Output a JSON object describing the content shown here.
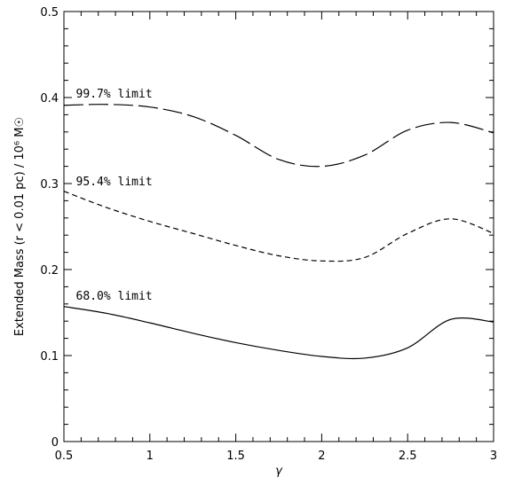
{
  "chart_data": {
    "type": "line",
    "xlabel": "γ",
    "ylabel": "Extended Mass (r < 0.01 pc) / 10⁶ M☉",
    "xlim": [
      0.5,
      3.0
    ],
    "ylim": [
      0,
      0.5
    ],
    "x_ticks": [
      0.5,
      1,
      1.5,
      2,
      2.5,
      3
    ],
    "x_tick_labels": [
      "0.5",
      "1",
      "1.5",
      "2",
      "2.5",
      "3"
    ],
    "y_ticks": [
      0,
      0.1,
      0.2,
      0.3,
      0.4,
      0.5
    ],
    "y_tick_labels": [
      "0",
      "0.1",
      "0.2",
      "0.3",
      "0.4",
      "0.5"
    ],
    "grid": false,
    "series": [
      {
        "name": "99.7% limit",
        "line_style": "long-dash",
        "x": [
          0.5,
          0.75,
          1.0,
          1.25,
          1.5,
          1.75,
          2.0,
          2.25,
          2.5,
          2.75,
          3.0
        ],
        "y": [
          0.391,
          0.392,
          0.389,
          0.378,
          0.356,
          0.328,
          0.32,
          0.333,
          0.362,
          0.371,
          0.359
        ]
      },
      {
        "name": "95.4% limit",
        "line_style": "short-dash",
        "x": [
          0.5,
          0.75,
          1.0,
          1.25,
          1.5,
          1.75,
          2.0,
          2.25,
          2.5,
          2.75,
          3.0
        ],
        "y": [
          0.291,
          0.272,
          0.256,
          0.242,
          0.228,
          0.216,
          0.21,
          0.214,
          0.242,
          0.259,
          0.242
        ]
      },
      {
        "name": "68.0% limit",
        "line_style": "solid",
        "x": [
          0.5,
          0.75,
          1.0,
          1.25,
          1.5,
          1.75,
          2.0,
          2.25,
          2.5,
          2.75,
          3.0
        ],
        "y": [
          0.157,
          0.149,
          0.138,
          0.126,
          0.115,
          0.106,
          0.099,
          0.097,
          0.109,
          0.142,
          0.139
        ]
      }
    ],
    "label_anchor_x": [
      0.57,
      0.57,
      0.57
    ],
    "label_anchor_y": [
      0.4,
      0.298,
      0.165
    ]
  }
}
